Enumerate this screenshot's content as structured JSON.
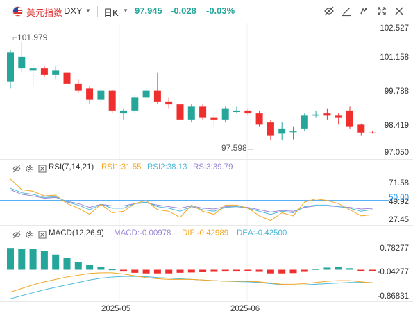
{
  "header": {
    "symbol_name": "美元指数",
    "symbol_code": "DXY",
    "timeframe": "日K",
    "price": "97.945",
    "change": "-0.028",
    "change_pct": "-0.03%"
  },
  "toolbar_icons": [
    "eye-off-icon",
    "draw-icon",
    "undo-icon",
    "fullscreen-icon",
    "close-icon"
  ],
  "price_axis": [
    "102.527",
    "101.158",
    "99.788",
    "98.419",
    "97.050"
  ],
  "annotations": {
    "high": "101.979",
    "low": "97.598"
  },
  "rsi": {
    "title": "RSI(7,14,21)",
    "rsi1": "RSI1:31.55",
    "rsi2": "RSI2:38.13",
    "rsi3": "RSI3:39.79",
    "axis": [
      "71.58",
      "50.00",
      "49.92",
      "27.45"
    ]
  },
  "macd": {
    "title": "MACD(12,26,9)",
    "macd": "MACD:-0.00978",
    "dif": "DIF:-0.42989",
    "dea": "DEA:-0.42500",
    "axis": [
      "0.78277",
      "-0.04277",
      "-0.86831"
    ]
  },
  "x_axis": [
    "2025-05",
    "2025-06"
  ],
  "colors": {
    "up": "#26a69a",
    "down": "#ef2e2e",
    "rsi1": "#f5a623",
    "rsi2": "#4fb8d8",
    "rsi3": "#9b86d6",
    "dif": "#f5a623",
    "dea": "#4fb8d8",
    "accent": "#2196f3"
  },
  "chart_data": {
    "type": "candlestick",
    "candles": [
      {
        "o": 100.2,
        "h": 101.6,
        "l": 99.9,
        "c": 101.5
      },
      {
        "o": 100.8,
        "h": 101.98,
        "l": 100.6,
        "c": 101.3
      },
      {
        "o": 100.7,
        "h": 101.0,
        "l": 100.0,
        "c": 100.8
      },
      {
        "o": 100.8,
        "h": 100.9,
        "l": 100.4,
        "c": 100.5
      },
      {
        "o": 100.5,
        "h": 100.9,
        "l": 100.3,
        "c": 100.7
      },
      {
        "o": 100.6,
        "h": 100.7,
        "l": 100.0,
        "c": 100.1
      },
      {
        "o": 100.1,
        "h": 100.3,
        "l": 99.7,
        "c": 99.8
      },
      {
        "o": 99.9,
        "h": 100.0,
        "l": 99.2,
        "c": 99.4
      },
      {
        "o": 99.4,
        "h": 99.9,
        "l": 99.3,
        "c": 99.8
      },
      {
        "o": 99.8,
        "h": 99.85,
        "l": 98.8,
        "c": 98.9
      },
      {
        "o": 98.8,
        "h": 99.0,
        "l": 98.5,
        "c": 98.9
      },
      {
        "o": 98.9,
        "h": 99.6,
        "l": 98.8,
        "c": 99.5
      },
      {
        "o": 99.5,
        "h": 99.9,
        "l": 99.4,
        "c": 99.8
      },
      {
        "o": 99.8,
        "h": 100.6,
        "l": 99.2,
        "c": 99.3
      },
      {
        "o": 99.3,
        "h": 99.5,
        "l": 99.0,
        "c": 99.2
      },
      {
        "o": 99.2,
        "h": 99.3,
        "l": 98.4,
        "c": 98.5
      },
      {
        "o": 98.5,
        "h": 99.2,
        "l": 98.4,
        "c": 99.1
      },
      {
        "o": 99.1,
        "h": 99.2,
        "l": 98.5,
        "c": 98.6
      },
      {
        "o": 98.6,
        "h": 98.7,
        "l": 98.2,
        "c": 98.5
      },
      {
        "o": 98.5,
        "h": 99.1,
        "l": 98.4,
        "c": 99.0
      },
      {
        "o": 98.9,
        "h": 99.1,
        "l": 98.8,
        "c": 98.9
      },
      {
        "o": 98.9,
        "h": 99.0,
        "l": 98.7,
        "c": 98.8
      },
      {
        "o": 98.8,
        "h": 98.9,
        "l": 98.2,
        "c": 98.3
      },
      {
        "o": 98.4,
        "h": 98.5,
        "l": 97.6,
        "c": 97.8
      },
      {
        "o": 97.9,
        "h": 98.4,
        "l": 97.6,
        "c": 98.1
      },
      {
        "o": 98.0,
        "h": 98.2,
        "l": 97.65,
        "c": 98.0
      },
      {
        "o": 98.1,
        "h": 98.8,
        "l": 98.0,
        "c": 98.7
      },
      {
        "o": 98.7,
        "h": 98.9,
        "l": 98.6,
        "c": 98.75
      },
      {
        "o": 98.8,
        "h": 99.0,
        "l": 98.5,
        "c": 98.7
      },
      {
        "o": 98.7,
        "h": 98.8,
        "l": 98.3,
        "c": 98.6
      },
      {
        "o": 98.9,
        "h": 99.1,
        "l": 98.1,
        "c": 98.2
      },
      {
        "o": 98.3,
        "h": 98.35,
        "l": 97.8,
        "c": 97.95
      },
      {
        "o": 97.95,
        "h": 98.0,
        "l": 97.9,
        "c": 97.945
      }
    ],
    "ylim": [
      97.05,
      102.527
    ],
    "rsi_ylim": [
      20,
      85
    ],
    "rsi1": [
      78,
      64,
      62,
      56,
      57,
      46,
      40,
      32,
      45,
      34,
      36,
      46,
      50,
      38,
      36,
      28,
      44,
      36,
      32,
      44,
      44,
      40,
      30,
      24,
      34,
      30,
      48,
      52,
      50,
      46,
      38,
      30,
      31.55
    ],
    "rsi2": [
      66,
      60,
      58,
      54,
      55,
      48,
      44,
      38,
      45,
      40,
      40,
      46,
      48,
      42,
      40,
      36,
      42,
      38,
      36,
      41,
      42,
      40,
      36,
      32,
      36,
      34,
      42,
      44,
      44,
      42,
      40,
      36,
      38.13
    ],
    "rsi3": [
      64,
      58,
      56,
      53,
      54,
      49,
      46,
      41,
      45,
      43,
      43,
      46,
      47,
      44,
      42,
      40,
      43,
      40,
      39,
      42,
      42,
      41,
      38,
      35,
      37,
      36,
      41,
      43,
      43,
      42,
      41,
      39,
      39.79
    ],
    "rsi_level": 50,
    "macd_ylim": [
      -1.0,
      1.0
    ],
    "macd_hist": [
      0.72,
      0.7,
      0.68,
      0.62,
      0.5,
      0.38,
      0.26,
      0.16,
      0.08,
      0.02,
      -0.06,
      -0.1,
      -0.12,
      -0.12,
      -0.12,
      -0.1,
      -0.09,
      -0.08,
      -0.07,
      -0.06,
      -0.06,
      -0.05,
      -0.07,
      -0.12,
      -0.12,
      -0.11,
      -0.07,
      0.03,
      0.07,
      0.09,
      0.05,
      -0.01,
      -0.01
    ],
    "dif": [
      -0.74,
      -0.62,
      -0.5,
      -0.4,
      -0.32,
      -0.24,
      -0.18,
      -0.12,
      -0.1,
      -0.1,
      -0.14,
      -0.2,
      -0.26,
      -0.3,
      -0.32,
      -0.32,
      -0.32,
      -0.34,
      -0.36,
      -0.38,
      -0.38,
      -0.38,
      -0.4,
      -0.44,
      -0.48,
      -0.48,
      -0.46,
      -0.42,
      -0.38,
      -0.36,
      -0.36,
      -0.4,
      -0.43
    ],
    "dea": [
      -0.96,
      -0.86,
      -0.76,
      -0.66,
      -0.58,
      -0.5,
      -0.42,
      -0.34,
      -0.28,
      -0.24,
      -0.22,
      -0.22,
      -0.23,
      -0.26,
      -0.28,
      -0.3,
      -0.32,
      -0.34,
      -0.36,
      -0.38,
      -0.39,
      -0.4,
      -0.42,
      -0.46,
      -0.49,
      -0.51,
      -0.5,
      -0.48,
      -0.46,
      -0.44,
      -0.42,
      -0.42,
      -0.425
    ]
  }
}
